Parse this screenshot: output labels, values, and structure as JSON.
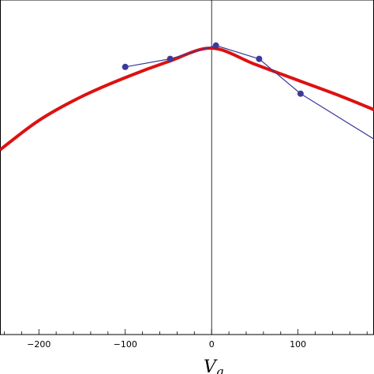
{
  "chart_data": {
    "type": "line",
    "title": "",
    "xlabel": "V_g",
    "xlabel_main": "V",
    "xlabel_sub": "g",
    "ylabel": "",
    "xlim": [
      -245,
      188
    ],
    "ylim": [
      -1.0,
      0.25
    ],
    "grid": false,
    "legend": "none",
    "x_ticks": [
      -200,
      -100,
      0,
      100
    ],
    "x_tick_labels": [
      "−200",
      "−100",
      "0",
      "100"
    ],
    "series": [
      {
        "kind": "points-line",
        "color": "#3b3a99",
        "x": [
          -100,
          -48,
          5,
          55,
          103,
          188
        ],
        "y": [
          0.0,
          0.03,
          0.08,
          0.03,
          -0.1,
          -0.27
        ]
      },
      {
        "kind": "curve",
        "color": "#dd1111",
        "x": [
          -245,
          -200,
          -150,
          -100,
          -50,
          0,
          50,
          100,
          150,
          188
        ],
        "y": [
          -0.31,
          -0.2,
          -0.11,
          -0.04,
          0.02,
          0.07,
          0.01,
          -0.05,
          -0.11,
          -0.16
        ]
      }
    ]
  }
}
